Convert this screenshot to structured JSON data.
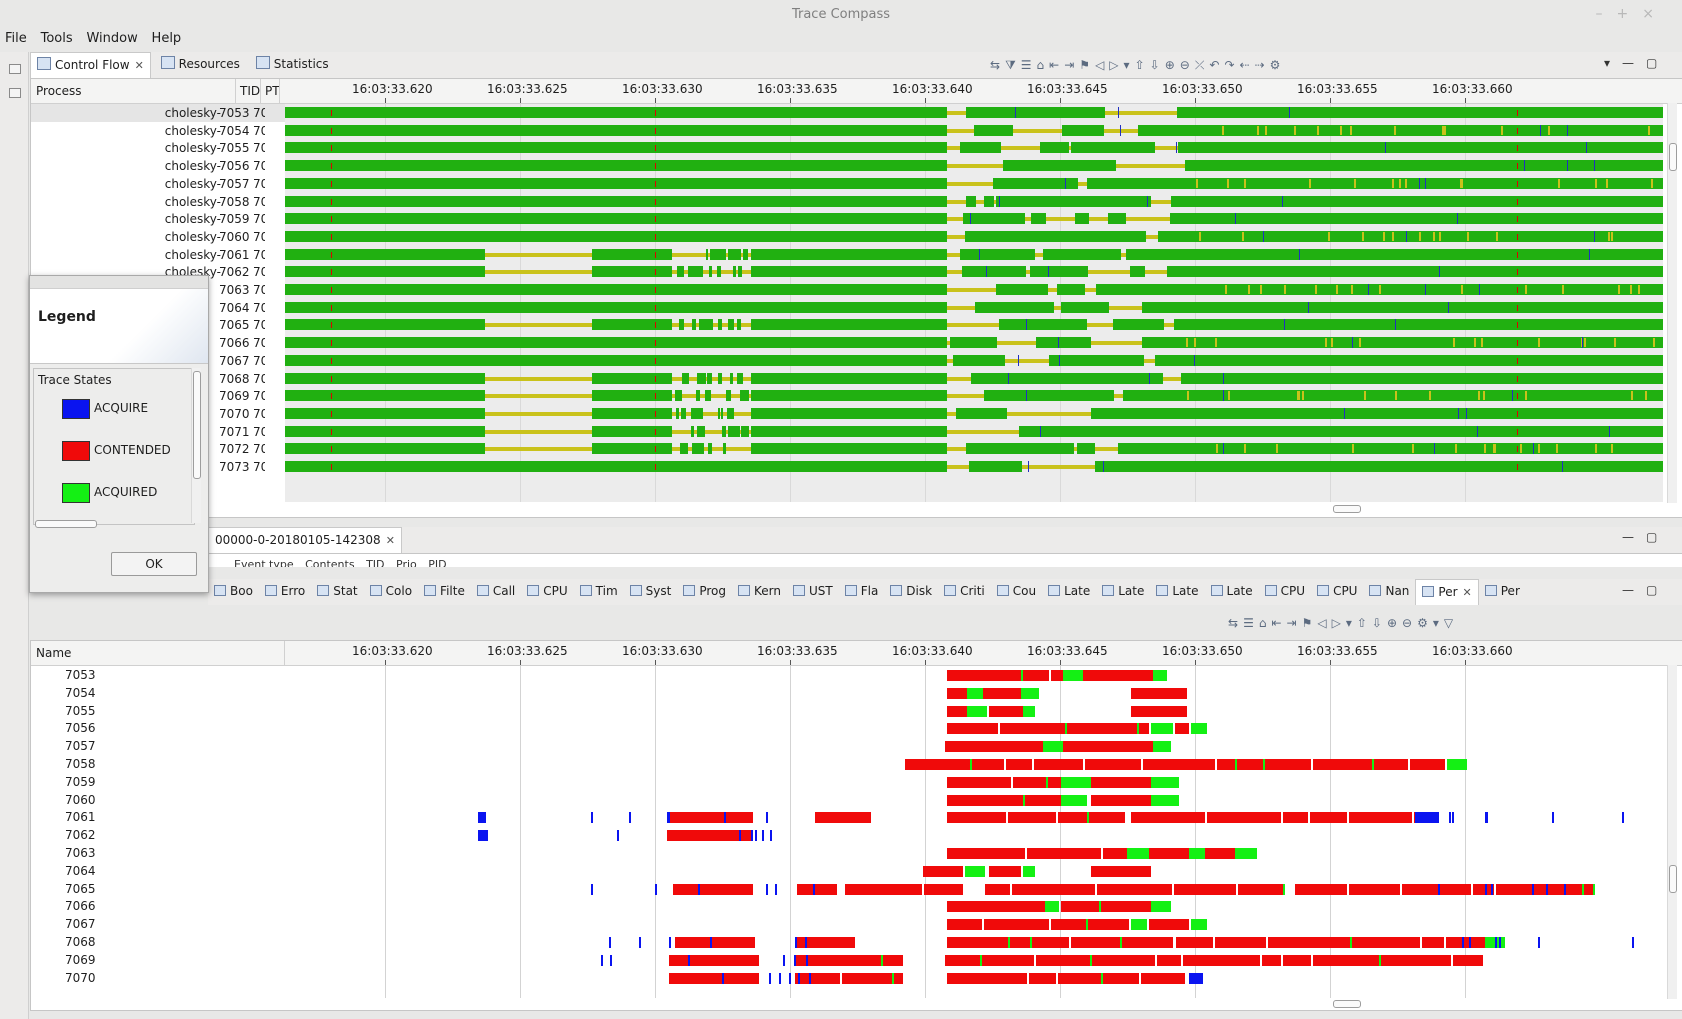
{
  "window": {
    "title": "Trace Compass",
    "controls": [
      "–",
      "+",
      "×"
    ]
  },
  "menubar": [
    "File",
    "Tools",
    "Window",
    "Help"
  ],
  "top_view": {
    "tabs": [
      {
        "label": "Control Flow",
        "active": true,
        "closable": true
      },
      {
        "label": "Resources",
        "active": false
      },
      {
        "label": "Statistics",
        "active": false
      }
    ],
    "columns": [
      "Process",
      "TID",
      "PT"
    ],
    "ticks": [
      "16:03:33.620",
      "16:03:33.625",
      "16:03:33.630",
      "16:03:33.635",
      "16:03:33.640",
      "16:03:33.645",
      "16:03:33.650",
      "16:03:33.655",
      "16:03:33.660"
    ],
    "rows": [
      {
        "proc": "cholesky-",
        "tid": "7053",
        "pt": "70"
      },
      {
        "proc": "cholesky-",
        "tid": "7054",
        "pt": "70"
      },
      {
        "proc": "cholesky-",
        "tid": "7055",
        "pt": "70"
      },
      {
        "proc": "cholesky-",
        "tid": "7056",
        "pt": "70"
      },
      {
        "proc": "cholesky-",
        "tid": "7057",
        "pt": "70"
      },
      {
        "proc": "cholesky-",
        "tid": "7058",
        "pt": "70"
      },
      {
        "proc": "cholesky-",
        "tid": "7059",
        "pt": "70"
      },
      {
        "proc": "cholesky-",
        "tid": "7060",
        "pt": "70"
      },
      {
        "proc": "cholesky-",
        "tid": "7061",
        "pt": "70"
      },
      {
        "proc": "cholesky-",
        "tid": "7062",
        "pt": "70"
      },
      {
        "proc": "",
        "tid": "7063",
        "pt": "70"
      },
      {
        "proc": "",
        "tid": "7064",
        "pt": "70"
      },
      {
        "proc": "",
        "tid": "7065",
        "pt": "70"
      },
      {
        "proc": "",
        "tid": "7066",
        "pt": "70"
      },
      {
        "proc": "",
        "tid": "7067",
        "pt": "70"
      },
      {
        "proc": "",
        "tid": "7068",
        "pt": "70"
      },
      {
        "proc": "",
        "tid": "7069",
        "pt": "70"
      },
      {
        "proc": "",
        "tid": "7070",
        "pt": "70"
      },
      {
        "proc": "",
        "tid": "7071",
        "pt": "70"
      },
      {
        "proc": "",
        "tid": "7072",
        "pt": "70"
      },
      {
        "proc": "",
        "tid": "7073",
        "pt": "70"
      }
    ]
  },
  "events_tab": {
    "label": "00000-0-20180105-142308",
    "columns": [
      "Event type",
      "Contents",
      "TID",
      "Prio",
      "PID"
    ]
  },
  "bottom_view": {
    "tabs": [
      "Boo",
      "Erro",
      "Stat",
      "Colo",
      "Filte",
      "Call",
      "CPU",
      "Tim",
      "Syst",
      "Prog",
      "Kern",
      "UST",
      "Fla",
      "Disk",
      "Criti",
      "Cou",
      "Late",
      "Late",
      "Late",
      "Late",
      "CPU",
      "CPU",
      "Nan",
      "Per",
      "Per"
    ],
    "active_tab": "Per",
    "name_column": "Name",
    "ticks": [
      "16:03:33.620",
      "16:03:33.625",
      "16:03:33.630",
      "16:03:33.635",
      "16:03:33.640",
      "16:03:33.645",
      "16:03:33.650",
      "16:03:33.655",
      "16:03:33.660"
    ],
    "rows": [
      "7053",
      "7054",
      "7055",
      "7056",
      "7057",
      "7058",
      "7059",
      "7060",
      "7061",
      "7062",
      "7063",
      "7064",
      "7065",
      "7066",
      "7067",
      "7068",
      "7069",
      "7070"
    ]
  },
  "legend": {
    "title": "Legend",
    "section": "Trace States",
    "items": [
      {
        "label": "ACQUIRE",
        "color": "#0a14f0"
      },
      {
        "label": "CONTENDED",
        "color": "#f00a0a"
      },
      {
        "label": "ACQUIRED",
        "color": "#14f014"
      }
    ],
    "ok_label": "OK"
  },
  "colors": {
    "running": "#21b011",
    "waiting": "#c9c21b",
    "blocked": "#e00000",
    "acquire": "#0a14f0",
    "contended": "#f00a0a",
    "acquired": "#14f014"
  }
}
